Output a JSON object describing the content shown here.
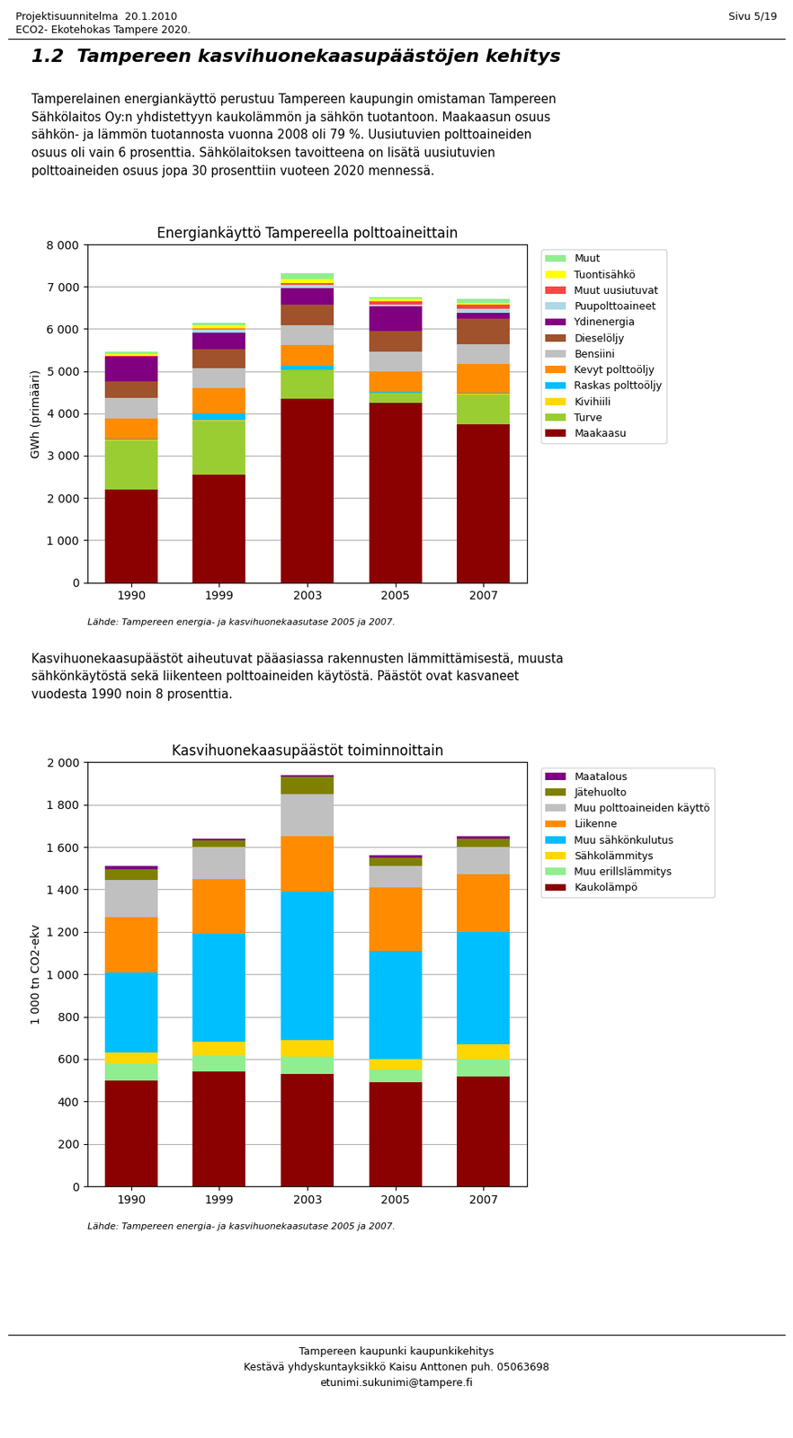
{
  "annotations": [
    "Projektisuunnitelma  20.1.2010",
    "ECO2- Ekotehokas Tampere 2020.",
    "Sivu 5/19",
    "1.2  Tampereen kasvihuonekaasupäästöjen kehitys",
    "Tamperelainen energiankäyttö perustuu Tampereen kaupungin omistaman Tampereen\nSähkölaitos Oy:n yhdistettyyn kaukolämmön ja sähkön tuotantoon. Maakaasun osuus\nsähkön- ja lämmön tuotannosta vuonna 2008 oli 79 %. Uusiutuvien polttoaineiden\nosuus oli vain 6 prosenttia. Sähkölaitoksen tavoitteena on lisätä uusiutuvien\npolttoaineiden osuus jopa 30 prosenttiin vuoteen 2020 mennessä.",
    "Kasvihuonekaasupäästöt aiheutuvat pääasiassa rakennusten lämmittämisestä, muusta\nsähkönkäytöstä sekä liikenteen polttoaineiden käytöstä. Päästöt ovat kasvaneet\nvuodesta 1990 noin 8 prosenttia.",
    "Tampereen kaupunki kaupunkikehitys\nKestävä yhdyskuntayksikkö Kaisu Anttonen puh. 05063698\netunimi.sukunimi@tampere.fi"
  ],
  "chart_data": [
    {
      "type": "bar",
      "stacked": true,
      "title": "Energiankäyttö Tampereella polttoaineittain",
      "y_label": "GWh (primääri)",
      "categories": [
        "1990",
        "1999",
        "2003",
        "2005",
        "2007"
      ],
      "ylim": [
        0,
        8000
      ],
      "yticks": [
        0,
        {
          "value": 1000,
          "label": "1 000"
        },
        {
          "value": 2000,
          "label": "2 000"
        },
        {
          "value": 3000,
          "label": "3 000"
        },
        {
          "value": 4000,
          "label": "4 000"
        },
        {
          "value": 5000,
          "label": "5 000"
        },
        {
          "value": 6000,
          "label": "6 000"
        },
        {
          "value": 7000,
          "label": "7 000"
        },
        {
          "value": 8000,
          "label": "8 000"
        }
      ],
      "grid": true,
      "legend": "upper left",
      "annotations": [
        "Lähde: Tampereen energia- ja kasvihuonekaasutase 2005 ja 2007."
      ],
      "series": [
        {
          "name": "Maakaasu",
          "color": "#8B0000",
          "values": [
            2200,
            2550,
            4350,
            4250,
            3750
          ]
        },
        {
          "name": "Turve",
          "color": "#9ACD32",
          "values": [
            1150,
            1280,
            680,
            230,
            700
          ]
        },
        {
          "name": "Kivihiili",
          "color": "#FFD700",
          "values": [
            20,
            20,
            10,
            10,
            10
          ]
        },
        {
          "name": "Raskas polttoöljy",
          "color": "#00BFFF",
          "values": [
            30,
            150,
            90,
            20,
            20
          ]
        },
        {
          "name": "Kevyt polttoöljy",
          "color": "#FF8C00",
          "values": [
            480,
            600,
            480,
            480,
            680
          ]
        },
        {
          "name": "Bensiini",
          "color": "#C0C0C0",
          "values": [
            480,
            480,
            480,
            480,
            480
          ]
        },
        {
          "name": "Dieselöljy",
          "color": "#A0522D",
          "values": [
            400,
            450,
            480,
            480,
            600
          ]
        },
        {
          "name": "Ydinenergia",
          "color": "#800080",
          "values": [
            580,
            380,
            400,
            580,
            150
          ]
        },
        {
          "name": "Puupolttoaineet",
          "color": "#ADD8E6",
          "values": [
            10,
            80,
            80,
            50,
            80
          ]
        },
        {
          "name": "Muut uusiutuvat",
          "color": "#FF4444",
          "values": [
            20,
            20,
            40,
            80,
            100
          ]
        },
        {
          "name": "Tuontisähkö",
          "color": "#FFFF00",
          "values": [
            30,
            80,
            100,
            50,
            50
          ]
        },
        {
          "name": "Muut",
          "color": "#90EE90",
          "values": [
            60,
            60,
            130,
            50,
            100
          ]
        }
      ]
    },
    {
      "type": "bar",
      "stacked": true,
      "title": "Kasvihuonekaasupäästöt toiminnoittain",
      "y_label": "1 000 tn CO2-ekv",
      "categories": [
        "1990",
        "1999",
        "2003",
        "2005",
        "2007"
      ],
      "ylim": [
        0,
        2000
      ],
      "yticks": [
        0,
        200,
        400,
        600,
        800,
        {
          "value": 1000,
          "label": "1 000"
        },
        {
          "value": 1200,
          "label": "1 200"
        },
        {
          "value": 1400,
          "label": "1 400"
        },
        {
          "value": 1600,
          "label": "1 600"
        },
        {
          "value": 1800,
          "label": "1 800"
        },
        {
          "value": 2000,
          "label": "2 000"
        }
      ],
      "grid": true,
      "legend": "upper left",
      "annotations": [
        "Lähde: Tampereen energia- ja kasvihuonekaasutase 2005 ja 2007."
      ],
      "series": [
        {
          "name": "Kaukolämpö",
          "color": "#8B0000",
          "values": [
            500,
            540,
            530,
            490,
            520
          ]
        },
        {
          "name": "Muu erillslämmitys",
          "color": "#90EE90",
          "values": [
            80,
            80,
            80,
            60,
            80
          ]
        },
        {
          "name": "Sähkolämmitys",
          "color": "#FFD700",
          "values": [
            50,
            60,
            80,
            50,
            70
          ]
        },
        {
          "name": "Muu sähkönkulutus",
          "color": "#00BFFF",
          "values": [
            380,
            510,
            700,
            510,
            530
          ]
        },
        {
          "name": "Liikenne",
          "color": "#FF8C00",
          "values": [
            260,
            260,
            260,
            300,
            270
          ]
        },
        {
          "name": "Muu polttoaineiden käyttö",
          "color": "#C0C0C0",
          "values": [
            175,
            150,
            200,
            100,
            130
          ]
        },
        {
          "name": "Jätehuolto",
          "color": "#808000",
          "values": [
            50,
            30,
            80,
            40,
            40
          ]
        },
        {
          "name": "Maatalous",
          "color": "#800080",
          "values": [
            15,
            10,
            10,
            10,
            10
          ]
        }
      ]
    }
  ]
}
